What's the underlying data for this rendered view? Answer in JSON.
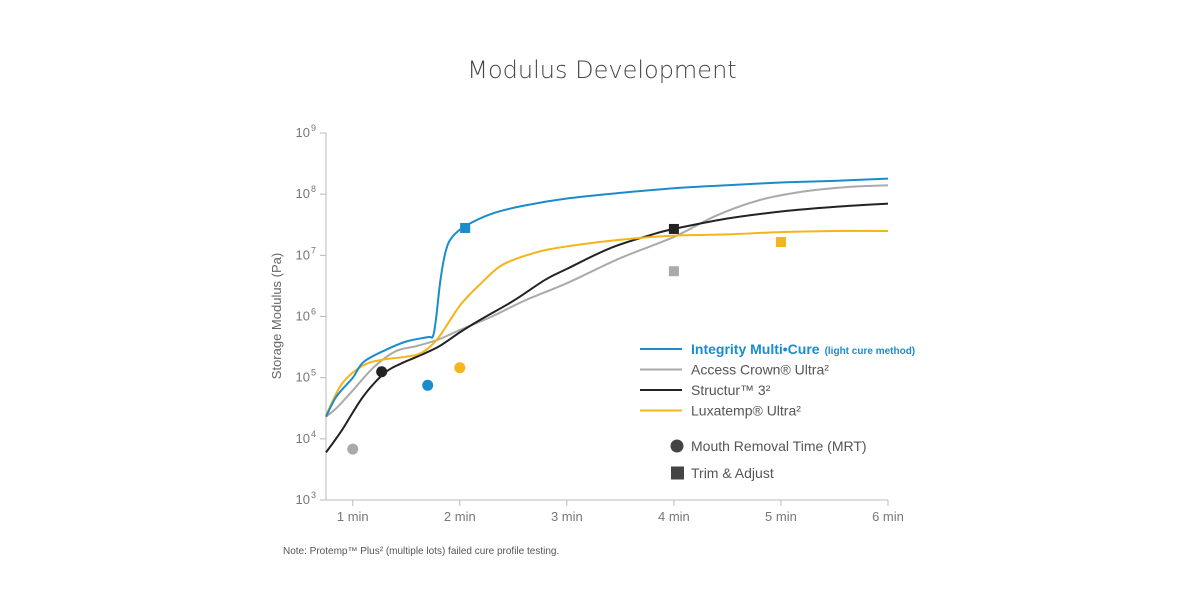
{
  "chart_data": {
    "type": "line",
    "title": "Modulus Development",
    "ylabel": "Storage Modulus (Pa)",
    "xlabel": "",
    "yscale": "log",
    "ylim": [
      1000,
      1000000000
    ],
    "xlim": [
      0.75,
      6
    ],
    "x_ticks": [
      {
        "value": 1,
        "label": "1 min"
      },
      {
        "value": 2,
        "label": "2 min"
      },
      {
        "value": 3,
        "label": "3 min"
      },
      {
        "value": 4,
        "label": "4 min"
      },
      {
        "value": 5,
        "label": "5 min"
      },
      {
        "value": 6,
        "label": "6 min"
      }
    ],
    "y_ticks": [
      {
        "value": 1000,
        "base": "10",
        "exp": "3"
      },
      {
        "value": 10000,
        "base": "10",
        "exp": "4"
      },
      {
        "value": 100000,
        "base": "10",
        "exp": "5"
      },
      {
        "value": 1000000,
        "base": "10",
        "exp": "6"
      },
      {
        "value": 10000000,
        "base": "10",
        "exp": "7"
      },
      {
        "value": 100000000,
        "base": "10",
        "exp": "8"
      },
      {
        "value": 1000000000,
        "base": "10",
        "exp": "9"
      }
    ],
    "series": [
      {
        "name": "Integrity Multi•Cure",
        "name_note": "(light cure method)",
        "color": "#1a8ccc",
        "bold": true,
        "points": [
          [
            0.75,
            23000
          ],
          [
            0.85,
            50000
          ],
          [
            1.0,
            100000
          ],
          [
            1.1,
            180000
          ],
          [
            1.3,
            280000
          ],
          [
            1.5,
            390000
          ],
          [
            1.7,
            460000
          ],
          [
            1.75,
            480000
          ],
          [
            1.78,
            1000000
          ],
          [
            1.82,
            4000000
          ],
          [
            1.87,
            12000000
          ],
          [
            1.93,
            20000000
          ],
          [
            2.05,
            30000000
          ],
          [
            2.3,
            48000000
          ],
          [
            2.6,
            65000000
          ],
          [
            3.0,
            85000000
          ],
          [
            3.5,
            105000000
          ],
          [
            4.0,
            125000000
          ],
          [
            4.5,
            140000000
          ],
          [
            5.0,
            155000000
          ],
          [
            5.5,
            165000000
          ],
          [
            6.0,
            180000000
          ]
        ],
        "mrt": {
          "x": 1.7,
          "y": 75000
        },
        "trim": {
          "x": 2.05,
          "y": 28000000
        }
      },
      {
        "name": "Access Crown® Ultra²",
        "color": "#aaaaaa",
        "points": [
          [
            0.75,
            23000
          ],
          [
            0.85,
            32000
          ],
          [
            1.0,
            62000
          ],
          [
            1.2,
            150000
          ],
          [
            1.4,
            270000
          ],
          [
            1.6,
            330000
          ],
          [
            1.8,
            420000
          ],
          [
            2.0,
            600000
          ],
          [
            2.3,
            1000000
          ],
          [
            2.6,
            1800000
          ],
          [
            3.0,
            3500000
          ],
          [
            3.5,
            9000000
          ],
          [
            4.0,
            20000000
          ],
          [
            4.4,
            45000000
          ],
          [
            4.8,
            80000000
          ],
          [
            5.2,
            110000000
          ],
          [
            5.6,
            130000000
          ],
          [
            6.0,
            140000000
          ]
        ],
        "mrt": {
          "x": 1.0,
          "y": 6800
        },
        "trim": {
          "x": 4.0,
          "y": 5500000
        }
      },
      {
        "name": "Structur™ 3²",
        "color": "#222222",
        "points": [
          [
            0.75,
            6000
          ],
          [
            0.9,
            14000
          ],
          [
            1.1,
            50000
          ],
          [
            1.3,
            120000
          ],
          [
            1.45,
            170000
          ],
          [
            1.6,
            220000
          ],
          [
            1.8,
            320000
          ],
          [
            2.0,
            550000
          ],
          [
            2.2,
            900000
          ],
          [
            2.5,
            1800000
          ],
          [
            2.8,
            4000000
          ],
          [
            3.0,
            6000000
          ],
          [
            3.4,
            13000000
          ],
          [
            3.8,
            22000000
          ],
          [
            4.0,
            27000000
          ],
          [
            4.5,
            40000000
          ],
          [
            5.0,
            52000000
          ],
          [
            5.5,
            62000000
          ],
          [
            6.0,
            70000000
          ]
        ],
        "mrt": {
          "x": 1.27,
          "y": 125000
        },
        "trim": {
          "x": 4.0,
          "y": 27000000
        }
      },
      {
        "name": "Luxatemp® Ultra²",
        "color": "#f4b41a",
        "points": [
          [
            0.75,
            24000
          ],
          [
            0.9,
            80000
          ],
          [
            1.1,
            160000
          ],
          [
            1.3,
            200000
          ],
          [
            1.5,
            220000
          ],
          [
            1.65,
            260000
          ],
          [
            1.8,
            450000
          ],
          [
            2.0,
            1500000
          ],
          [
            2.2,
            3500000
          ],
          [
            2.4,
            7000000
          ],
          [
            2.7,
            11000000
          ],
          [
            3.0,
            14000000
          ],
          [
            3.5,
            18000000
          ],
          [
            4.0,
            21000000
          ],
          [
            4.5,
            22000000
          ],
          [
            5.0,
            24000000
          ],
          [
            5.5,
            25000000
          ],
          [
            6.0,
            25000000
          ]
        ],
        "mrt": {
          "x": 2.0,
          "y": 145000
        },
        "trim": {
          "x": 5.0,
          "y": 16500000
        }
      }
    ],
    "markers_legend": [
      {
        "shape": "circle",
        "label": "Mouth Removal Time (MRT)"
      },
      {
        "shape": "square",
        "label": "Trim & Adjust"
      }
    ],
    "legend_placement": "right-center",
    "grid": false,
    "note": "Note: Protemp™ Plus² (multiple lots) failed cure profile testing."
  }
}
